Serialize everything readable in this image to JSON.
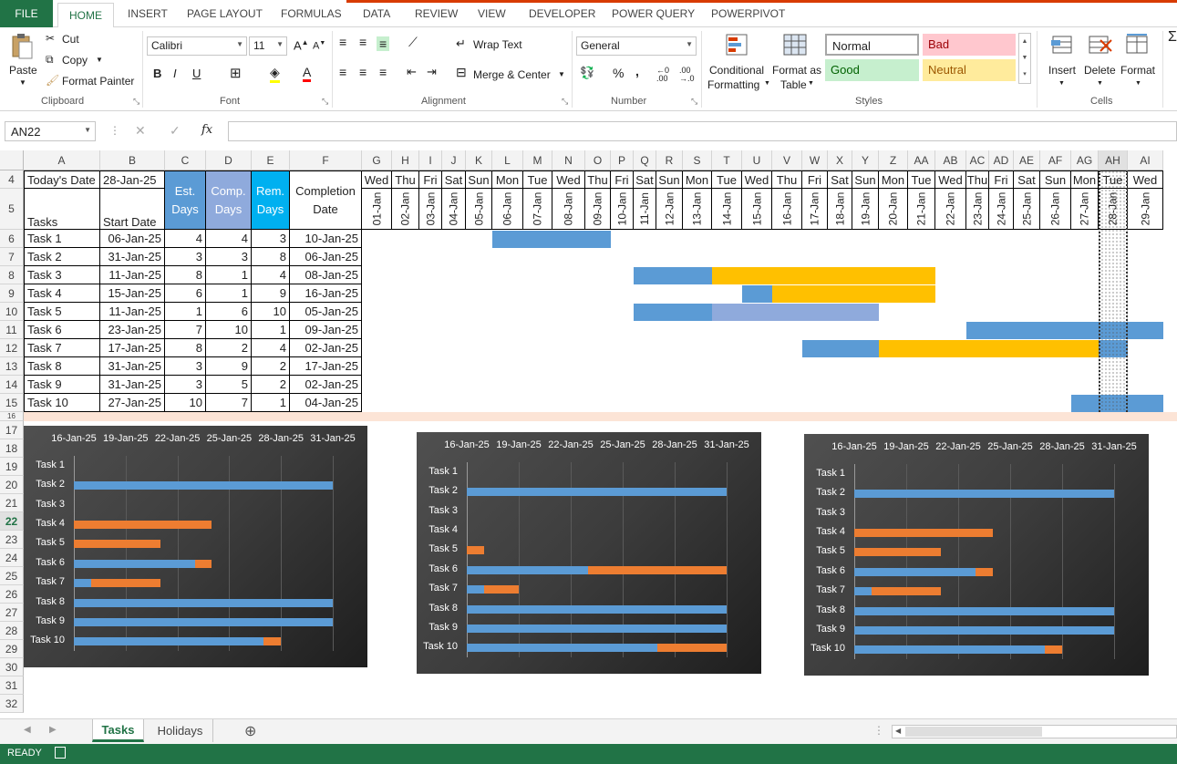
{
  "ribbon_tabs": {
    "file": "FILE",
    "home": "HOME",
    "others": [
      "INSERT",
      "PAGE LAYOUT",
      "FORMULAS",
      "DATA",
      "REVIEW",
      "VIEW",
      "DEVELOPER",
      "POWER QUERY",
      "POWERPIVOT"
    ]
  },
  "clipboard": {
    "paste": "Paste",
    "cut": "Cut",
    "copy": "Copy",
    "format_painter": "Format Painter",
    "label": "Clipboard"
  },
  "font": {
    "name": "Calibri",
    "size": "11",
    "label": "Font"
  },
  "alignment": {
    "wrap": "Wrap Text",
    "merge": "Merge & Center",
    "label": "Alignment"
  },
  "number": {
    "format": "General",
    "label": "Number"
  },
  "styles": {
    "conditional": "Conditional",
    "formatting": "Formatting",
    "format_as": "Format as",
    "table": "Table",
    "normal": "Normal",
    "bad": "Bad",
    "good": "Good",
    "neutral": "Neutral",
    "label": "Styles"
  },
  "cells": {
    "insert": "Insert",
    "delete": "Delete",
    "format": "Format",
    "label": "Cells"
  },
  "formula_bar": {
    "name_box": "AN22",
    "fx": "fx",
    "cancel": "✕",
    "enter": "✓",
    "value": ""
  },
  "columns": [
    "A",
    "B",
    "C",
    "D",
    "E",
    "F",
    "G",
    "H",
    "I",
    "J",
    "K",
    "L",
    "M",
    "N",
    "O",
    "P",
    "Q",
    "R",
    "S",
    "T",
    "U",
    "V",
    "W",
    "X",
    "Y",
    "Z",
    "AA",
    "AB",
    "AC",
    "AD",
    "AE",
    "AF",
    "AG",
    "AH",
    "AI"
  ],
  "rows": [
    "4",
    "5",
    "6",
    "7",
    "8",
    "9",
    "10",
    "11",
    "12",
    "13",
    "14",
    "15",
    "16",
    "17",
    "18",
    "19",
    "20",
    "21",
    "22",
    "23",
    "24",
    "25",
    "26",
    "27",
    "28",
    "29",
    "30",
    "31",
    "32"
  ],
  "header": {
    "today_label": "Today's Date",
    "today_value": "28-Jan-25",
    "tasks": "Tasks",
    "start_date": "Start Date",
    "est": "Est. Days",
    "comp": "Comp. Days",
    "rem": "Rem. Days",
    "completion": "Completion Date"
  },
  "tasks": [
    {
      "name": "Task 1",
      "start": "06-Jan-25",
      "est": "4",
      "comp": "4",
      "rem": "3",
      "done": "10-Jan-25"
    },
    {
      "name": "Task 2",
      "start": "31-Jan-25",
      "est": "3",
      "comp": "3",
      "rem": "8",
      "done": "06-Jan-25"
    },
    {
      "name": "Task 3",
      "start": "11-Jan-25",
      "est": "8",
      "comp": "1",
      "rem": "4",
      "done": "08-Jan-25"
    },
    {
      "name": "Task 4",
      "start": "15-Jan-25",
      "est": "6",
      "comp": "1",
      "rem": "9",
      "done": "16-Jan-25"
    },
    {
      "name": "Task 5",
      "start": "11-Jan-25",
      "est": "1",
      "comp": "6",
      "rem": "10",
      "done": "05-Jan-25"
    },
    {
      "name": "Task 6",
      "start": "23-Jan-25",
      "est": "7",
      "comp": "10",
      "rem": "1",
      "done": "09-Jan-25"
    },
    {
      "name": "Task 7",
      "start": "17-Jan-25",
      "est": "8",
      "comp": "2",
      "rem": "4",
      "done": "02-Jan-25"
    },
    {
      "name": "Task 8",
      "start": "31-Jan-25",
      "est": "3",
      "comp": "9",
      "rem": "2",
      "done": "17-Jan-25"
    },
    {
      "name": "Task 9",
      "start": "31-Jan-25",
      "est": "3",
      "comp": "5",
      "rem": "2",
      "done": "02-Jan-25"
    },
    {
      "name": "Task 10",
      "start": "27-Jan-25",
      "est": "10",
      "comp": "7",
      "rem": "1",
      "done": "04-Jan-25"
    }
  ],
  "timeline_days": [
    "Wed",
    "Thu",
    "Fri",
    "Sat",
    "Sun",
    "Mon",
    "Tue",
    "Wed",
    "Thu",
    "Fri",
    "Sat",
    "Sun",
    "Mon",
    "Tue",
    "Wed",
    "Thu",
    "Fri",
    "Sat",
    "Sun",
    "Mon",
    "Tue",
    "Wed",
    "Thu",
    "Fri",
    "Sat",
    "Sun",
    "Mon",
    "Tue",
    "Wed"
  ],
  "timeline_dates": [
    "01-Jan",
    "02-Jan",
    "03-Jan",
    "04-Jan",
    "05-Jan",
    "06-Jan",
    "07-Jan",
    "08-Jan",
    "09-Jan",
    "10-Jan",
    "11-Jan",
    "12-Jan",
    "13-Jan",
    "14-Jan",
    "15-Jan",
    "16-Jan",
    "17-Jan",
    "18-Jan",
    "19-Jan",
    "20-Jan",
    "21-Jan",
    "22-Jan",
    "23-Jan",
    "24-Jan",
    "25-Jan",
    "26-Jan",
    "27-Jan",
    "28-Jan",
    "29-Jan"
  ],
  "gantt_colors": {
    "blue": "#5b9bd5",
    "gold": "#ffc000",
    "lavender": "#8faadc"
  },
  "gantt": [
    {
      "row": 0,
      "bars": [
        {
          "from": 5,
          "to": 9,
          "color": "blue"
        }
      ]
    },
    {
      "row": 2,
      "bars": [
        {
          "from": 10,
          "to": 13,
          "color": "blue"
        },
        {
          "from": 13,
          "to": 21,
          "color": "gold"
        }
      ]
    },
    {
      "row": 3,
      "bars": [
        {
          "from": 14,
          "to": 15,
          "color": "blue"
        },
        {
          "from": 15,
          "to": 21,
          "color": "gold"
        }
      ]
    },
    {
      "row": 4,
      "bars": [
        {
          "from": 10,
          "to": 13,
          "color": "blue"
        },
        {
          "from": 13,
          "to": 19,
          "color": "lavender"
        }
      ]
    },
    {
      "row": 5,
      "bars": [
        {
          "from": 22,
          "to": 29,
          "color": "blue"
        }
      ]
    },
    {
      "row": 6,
      "bars": [
        {
          "from": 16,
          "to": 19,
          "color": "blue"
        },
        {
          "from": 19,
          "to": 27,
          "color": "gold"
        },
        {
          "from": 27,
          "to": 28,
          "color": "blue"
        }
      ]
    },
    {
      "row": 9,
      "bars": [
        {
          "from": 26,
          "to": 29,
          "color": "blue"
        }
      ]
    }
  ],
  "today_index": 27,
  "chart_data": [
    {
      "type": "bar",
      "x_ticks": [
        "16-Jan-25",
        "19-Jan-25",
        "22-Jan-25",
        "25-Jan-25",
        "28-Jan-25",
        "31-Jan-25"
      ],
      "xlim": [
        "16-Jan-25",
        "31-Jan-25"
      ],
      "categories": [
        "Task 1",
        "Task 2",
        "Task 3",
        "Task 4",
        "Task 5",
        "Task 6",
        "Task 7",
        "Task 8",
        "Task 9",
        "Task 10"
      ],
      "series": [
        {
          "color": "#5b9bd5",
          "values": [
            [
              "16-Jan-25",
              "16-Jan-25"
            ],
            [
              "16-Jan-25",
              "31-Jan-25"
            ],
            [
              "16-Jan-25",
              "16-Jan-25"
            ],
            [
              "16-Jan-25",
              "16-Jan-25"
            ],
            [
              "16-Jan-25",
              "16-Jan-25"
            ],
            [
              "16-Jan-25",
              "23-Jan-25"
            ],
            [
              "16-Jan-25",
              "17-Jan-25"
            ],
            [
              "16-Jan-25",
              "31-Jan-25"
            ],
            [
              "16-Jan-25",
              "31-Jan-25"
            ],
            [
              "16-Jan-25",
              "27-Jan-25"
            ]
          ]
        },
        {
          "color": "#ed7d31",
          "values": [
            [
              "16-Jan-25",
              "16-Jan-25"
            ],
            [
              "31-Jan-25",
              "31-Jan-25"
            ],
            [
              "16-Jan-25",
              "16-Jan-25"
            ],
            [
              "16-Jan-25",
              "24-Jan-25"
            ],
            [
              "16-Jan-25",
              "21-Jan-25"
            ],
            [
              "23-Jan-25",
              "24-Jan-25"
            ],
            [
              "17-Jan-25",
              "21-Jan-25"
            ],
            [
              "31-Jan-25",
              "31-Jan-25"
            ],
            [
              "31-Jan-25",
              "31-Jan-25"
            ],
            [
              "27-Jan-25",
              "28-Jan-25"
            ]
          ]
        }
      ]
    },
    {
      "type": "bar",
      "x_ticks": [
        "16-Jan-25",
        "19-Jan-25",
        "22-Jan-25",
        "25-Jan-25",
        "28-Jan-25",
        "31-Jan-25"
      ],
      "xlim": [
        "16-Jan-25",
        "31-Jan-25"
      ],
      "categories": [
        "Task 1",
        "Task 2",
        "Task 3",
        "Task 4",
        "Task 5",
        "Task 6",
        "Task 7",
        "Task 8",
        "Task 9",
        "Task 10"
      ],
      "series": [
        {
          "color": "#5b9bd5",
          "values": [
            [
              "16-Jan-25",
              "16-Jan-25"
            ],
            [
              "16-Jan-25",
              "31-Jan-25"
            ],
            [
              "16-Jan-25",
              "16-Jan-25"
            ],
            [
              "16-Jan-25",
              "16-Jan-25"
            ],
            [
              "16-Jan-25",
              "16-Jan-25"
            ],
            [
              "16-Jan-25",
              "23-Jan-25"
            ],
            [
              "16-Jan-25",
              "17-Jan-25"
            ],
            [
              "16-Jan-25",
              "31-Jan-25"
            ],
            [
              "16-Jan-25",
              "31-Jan-25"
            ],
            [
              "16-Jan-25",
              "27-Jan-25"
            ]
          ]
        },
        {
          "color": "#ed7d31",
          "values": [
            [
              "16-Jan-25",
              "16-Jan-25"
            ],
            [
              "31-Jan-25",
              "31-Jan-25"
            ],
            [
              "16-Jan-25",
              "16-Jan-25"
            ],
            [
              "16-Jan-25",
              "16-Jan-25"
            ],
            [
              "16-Jan-25",
              "17-Jan-25"
            ],
            [
              "23-Jan-25",
              "31-Jan-25"
            ],
            [
              "17-Jan-25",
              "19-Jan-25"
            ],
            [
              "31-Jan-25",
              "31-Jan-25"
            ],
            [
              "31-Jan-25",
              "31-Jan-25"
            ],
            [
              "27-Jan-25",
              "31-Jan-25"
            ]
          ]
        }
      ]
    },
    {
      "type": "bar",
      "x_ticks": [
        "16-Jan-25",
        "19-Jan-25",
        "22-Jan-25",
        "25-Jan-25",
        "28-Jan-25",
        "31-Jan-25"
      ],
      "xlim": [
        "16-Jan-25",
        "31-Jan-25"
      ],
      "categories": [
        "Task 1",
        "Task 2",
        "Task 3",
        "Task 4",
        "Task 5",
        "Task 6",
        "Task 7",
        "Task 8",
        "Task 9",
        "Task 10"
      ],
      "series": [
        {
          "color": "#5b9bd5",
          "values": [
            [
              "16-Jan-25",
              "16-Jan-25"
            ],
            [
              "16-Jan-25",
              "31-Jan-25"
            ],
            [
              "16-Jan-25",
              "16-Jan-25"
            ],
            [
              "16-Jan-25",
              "16-Jan-25"
            ],
            [
              "16-Jan-25",
              "16-Jan-25"
            ],
            [
              "16-Jan-25",
              "23-Jan-25"
            ],
            [
              "16-Jan-25",
              "17-Jan-25"
            ],
            [
              "16-Jan-25",
              "31-Jan-25"
            ],
            [
              "16-Jan-25",
              "31-Jan-25"
            ],
            [
              "16-Jan-25",
              "27-Jan-25"
            ]
          ]
        },
        {
          "color": "#ed7d31",
          "values": [
            [
              "16-Jan-25",
              "16-Jan-25"
            ],
            [
              "31-Jan-25",
              "31-Jan-25"
            ],
            [
              "16-Jan-25",
              "16-Jan-25"
            ],
            [
              "16-Jan-25",
              "24-Jan-25"
            ],
            [
              "16-Jan-25",
              "21-Jan-25"
            ],
            [
              "23-Jan-25",
              "24-Jan-25"
            ],
            [
              "17-Jan-25",
              "21-Jan-25"
            ],
            [
              "31-Jan-25",
              "31-Jan-25"
            ],
            [
              "31-Jan-25",
              "31-Jan-25"
            ],
            [
              "27-Jan-25",
              "28-Jan-25"
            ]
          ]
        }
      ]
    }
  ],
  "sheets": [
    "Tasks",
    "Holidays"
  ],
  "status": "READY"
}
